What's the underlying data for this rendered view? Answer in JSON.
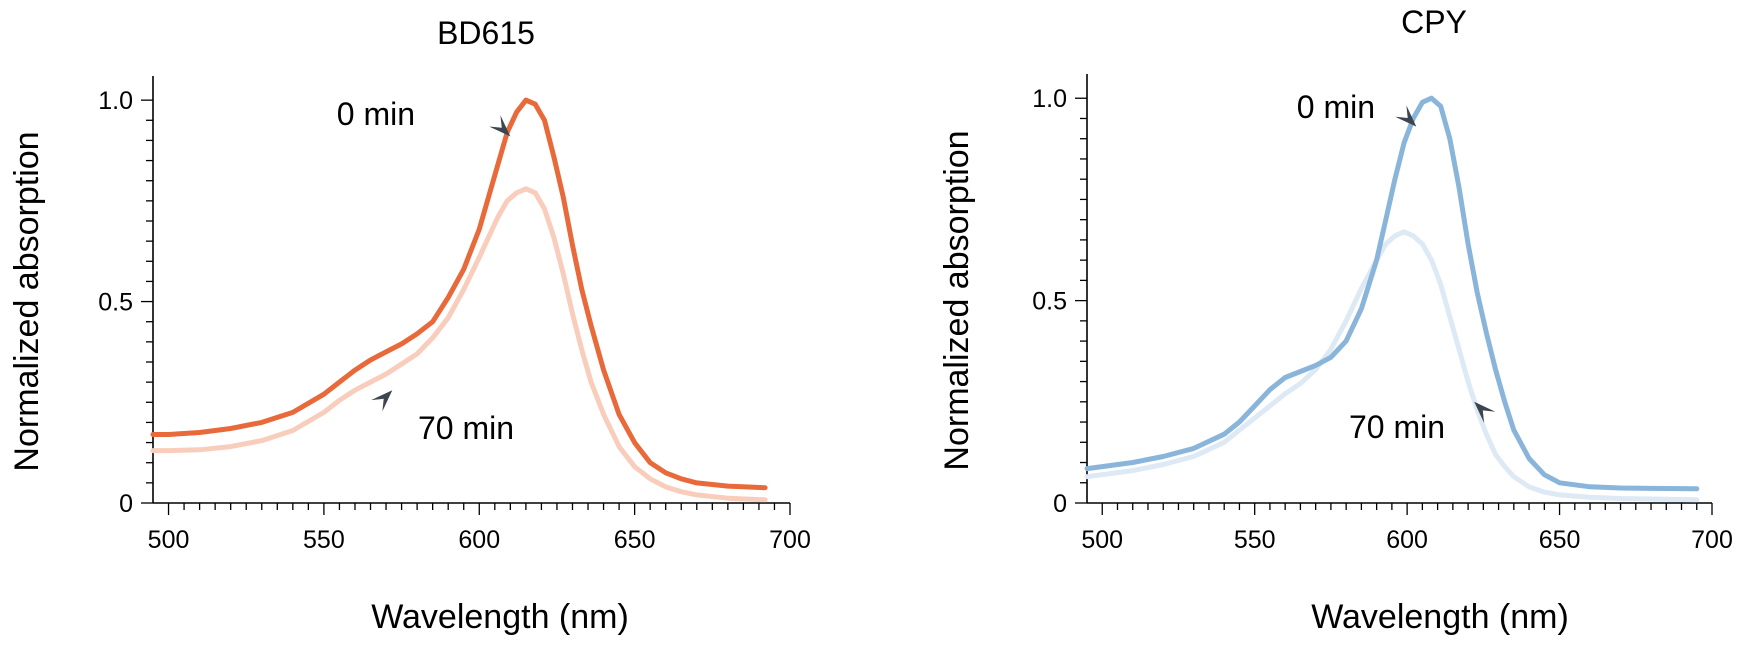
{
  "chart_data": [
    {
      "type": "line",
      "title": "BD615",
      "xlabel": "Wavelength (nm)",
      "ylabel": "Normalized absorption",
      "xlim": [
        495,
        700
      ],
      "ylim": [
        0,
        1.05
      ],
      "xticks": [
        {
          "v": 500,
          "label": "500"
        },
        {
          "v": 550,
          "label": "550"
        },
        {
          "v": 600,
          "label": "600"
        },
        {
          "v": 650,
          "label": "650"
        },
        {
          "v": 700,
          "label": "700"
        }
      ],
      "yticks": [
        {
          "v": 0,
          "label": "0"
        },
        {
          "v": 0.5,
          "label": "0.5"
        },
        {
          "v": 1.0,
          "label": "1.0"
        }
      ],
      "grid": false,
      "series": [
        {
          "name": "0 min",
          "color": "#e86a3a",
          "x": [
            495,
            500,
            510,
            520,
            530,
            540,
            550,
            555,
            560,
            565,
            570,
            575,
            580,
            585,
            590,
            595,
            600,
            603,
            606,
            609,
            612,
            615,
            618,
            621,
            624,
            627,
            630,
            633,
            636,
            640,
            645,
            650,
            655,
            660,
            665,
            670,
            680,
            692
          ],
          "y": [
            0.17,
            0.17,
            0.175,
            0.185,
            0.2,
            0.225,
            0.27,
            0.3,
            0.33,
            0.355,
            0.375,
            0.395,
            0.42,
            0.45,
            0.51,
            0.58,
            0.68,
            0.76,
            0.84,
            0.92,
            0.97,
            1.0,
            0.99,
            0.95,
            0.86,
            0.76,
            0.64,
            0.53,
            0.44,
            0.33,
            0.22,
            0.15,
            0.1,
            0.075,
            0.06,
            0.05,
            0.042,
            0.038
          ]
        },
        {
          "name": "70 min",
          "color": "#f9cdbb",
          "x": [
            495,
            500,
            510,
            520,
            530,
            540,
            550,
            555,
            560,
            565,
            570,
            575,
            580,
            585,
            590,
            595,
            600,
            603,
            606,
            609,
            612,
            615,
            618,
            621,
            624,
            627,
            630,
            633,
            636,
            640,
            645,
            650,
            655,
            660,
            665,
            670,
            680,
            692
          ],
          "y": [
            0.13,
            0.13,
            0.132,
            0.14,
            0.155,
            0.18,
            0.225,
            0.255,
            0.28,
            0.3,
            0.32,
            0.345,
            0.37,
            0.41,
            0.46,
            0.53,
            0.61,
            0.66,
            0.71,
            0.75,
            0.77,
            0.78,
            0.77,
            0.73,
            0.66,
            0.57,
            0.47,
            0.38,
            0.3,
            0.22,
            0.14,
            0.09,
            0.06,
            0.04,
            0.028,
            0.02,
            0.012,
            0.008
          ]
        }
      ],
      "annotations": [
        {
          "text": "0 min",
          "target": [
            610,
            0.91
          ]
        },
        {
          "text": "70 min",
          "target": [
            572,
            0.28
          ]
        }
      ]
    },
    {
      "type": "line",
      "title": "CPY",
      "xlabel": "Wavelength (nm)",
      "ylabel": "Normalized absorption",
      "xlim": [
        495,
        700
      ],
      "ylim": [
        0,
        1.05
      ],
      "xticks": [
        {
          "v": 500,
          "label": "500"
        },
        {
          "v": 550,
          "label": "550"
        },
        {
          "v": 600,
          "label": "600"
        },
        {
          "v": 650,
          "label": "650"
        },
        {
          "v": 700,
          "label": "700"
        }
      ],
      "yticks": [
        {
          "v": 0,
          "label": "0"
        },
        {
          "v": 0.5,
          "label": "0.5"
        },
        {
          "v": 1.0,
          "label": "1.0"
        }
      ],
      "grid": false,
      "series": [
        {
          "name": "0 min",
          "color": "#8ab5da",
          "x": [
            495,
            500,
            510,
            520,
            530,
            540,
            545,
            550,
            555,
            560,
            565,
            570,
            575,
            580,
            585,
            590,
            593,
            596,
            599,
            602,
            605,
            608,
            611,
            614,
            617,
            620,
            623,
            626,
            629,
            632,
            635,
            640,
            645,
            650,
            660,
            670,
            680,
            695
          ],
          "y": [
            0.085,
            0.09,
            0.1,
            0.115,
            0.135,
            0.17,
            0.2,
            0.24,
            0.28,
            0.31,
            0.325,
            0.34,
            0.36,
            0.4,
            0.48,
            0.6,
            0.7,
            0.8,
            0.89,
            0.95,
            0.99,
            1.0,
            0.98,
            0.9,
            0.78,
            0.64,
            0.52,
            0.42,
            0.33,
            0.25,
            0.18,
            0.11,
            0.07,
            0.05,
            0.04,
            0.037,
            0.036,
            0.035
          ]
        },
        {
          "name": "70 min",
          "color": "#dde9f5",
          "x": [
            495,
            500,
            510,
            520,
            530,
            540,
            545,
            550,
            555,
            560,
            565,
            570,
            575,
            580,
            585,
            590,
            593,
            596,
            599,
            602,
            605,
            608,
            611,
            614,
            617,
            620,
            623,
            626,
            629,
            632,
            635,
            640,
            645,
            650,
            660,
            670,
            680,
            695
          ],
          "y": [
            0.065,
            0.07,
            0.08,
            0.095,
            0.115,
            0.15,
            0.18,
            0.21,
            0.24,
            0.27,
            0.295,
            0.33,
            0.38,
            0.45,
            0.53,
            0.6,
            0.64,
            0.66,
            0.67,
            0.66,
            0.64,
            0.6,
            0.54,
            0.46,
            0.38,
            0.3,
            0.23,
            0.17,
            0.12,
            0.09,
            0.065,
            0.04,
            0.027,
            0.02,
            0.014,
            0.011,
            0.01,
            0.008
          ]
        }
      ],
      "annotations": [
        {
          "text": "0 min",
          "target": [
            603,
            0.93
          ]
        },
        {
          "text": "70 min",
          "target": [
            622,
            0.25
          ]
        }
      ]
    }
  ]
}
